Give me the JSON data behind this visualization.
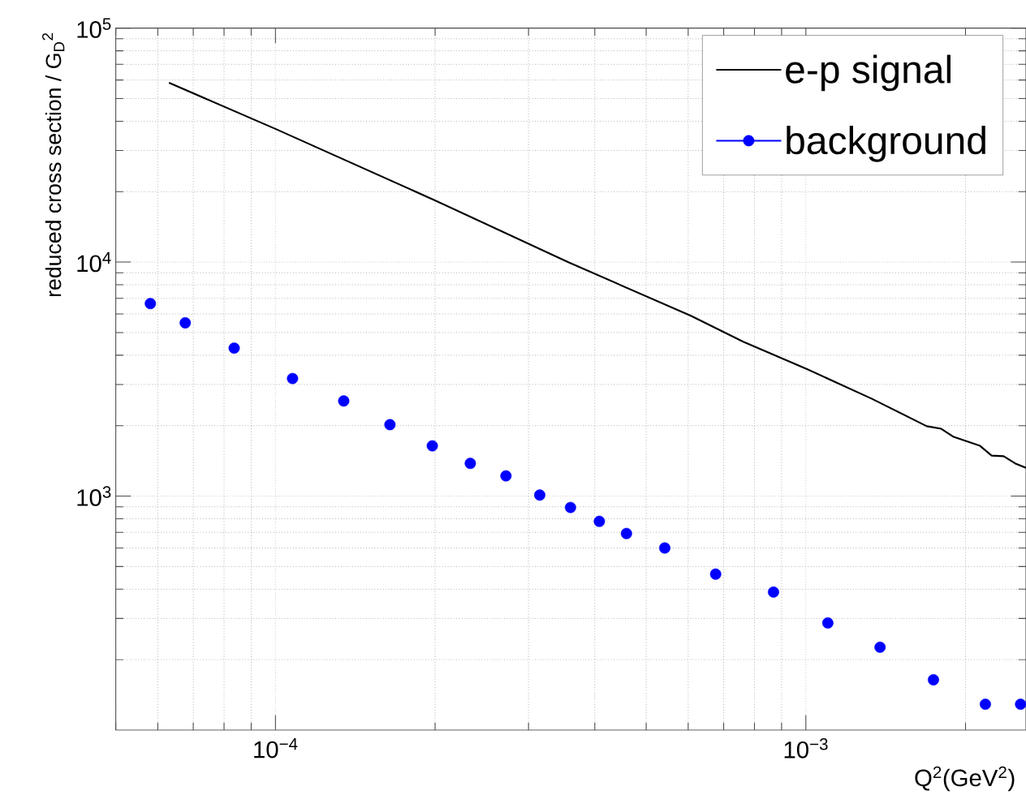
{
  "chart_data": {
    "type": "scatter",
    "xlabel": "Q$^{2}$(GeV$^{2}$)",
    "ylabel": "reduced cross section / G$_{D}$$^{2}$",
    "log": "xy",
    "xlim": [
      5e-05,
      0.0026
    ],
    "ylim": [
      100,
      100000
    ],
    "xticks": [
      {
        "value": 0.0001,
        "label": "10$^{−4}$"
      },
      {
        "value": 0.001,
        "label": "10$^{−3}$"
      }
    ],
    "yticks": [
      {
        "value": 1000,
        "label": "10$^{3}$"
      },
      {
        "value": 10000,
        "label": "10$^{4}$"
      },
      {
        "value": 100000,
        "label": "10$^{5}$"
      }
    ],
    "grid": true,
    "legend": "top right",
    "series": [
      {
        "name": "e-p signal",
        "type": "line",
        "color": "#000000",
        "marker": "none",
        "x": [
          6.3e-05,
          0.0001,
          0.0001995,
          0.000356,
          0.000607,
          0.000762,
          0.001007,
          0.00133,
          0.00169,
          0.0018,
          0.0019,
          0.00213,
          0.00224,
          0.00236,
          0.00248,
          0.0026
        ],
        "values": [
          58400,
          37100,
          18400,
          10000,
          5900,
          4570,
          3480,
          2610,
          1990,
          1940,
          1790,
          1640,
          1490,
          1480,
          1380,
          1320
        ]
      },
      {
        "name": "background",
        "color": "#0000ff",
        "marker": "circle",
        "x": [
          5.81e-05,
          6.76e-05,
          8.36e-05,
          0.0001077,
          0.0001345,
          0.0001644,
          0.0001976,
          0.000233,
          0.000272,
          0.000315,
          0.00036,
          0.000408,
          0.000459,
          0.000542,
          0.000676,
          0.000869,
          0.0011,
          0.00138,
          0.00174,
          0.00218,
          0.00254
        ],
        "values": [
          6650,
          5500,
          4290,
          3180,
          2550,
          2020,
          1640,
          1380,
          1220,
          1010,
          894,
          780,
          692,
          600,
          464,
          389,
          287,
          226,
          164,
          129,
          129
        ]
      }
    ]
  }
}
